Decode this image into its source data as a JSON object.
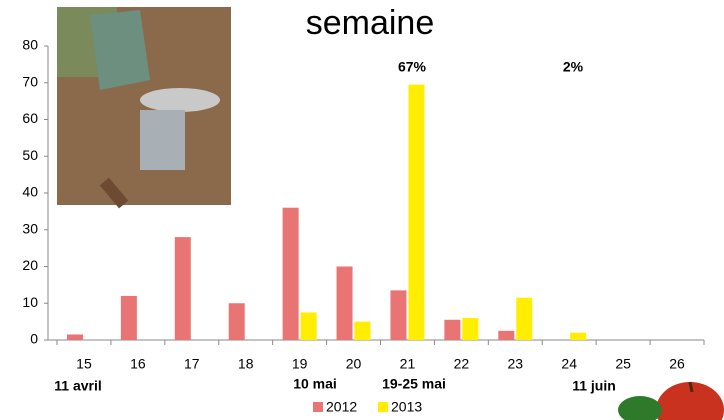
{
  "chart_data": {
    "type": "bar",
    "title": "semaine",
    "categories": [
      "15",
      "16",
      "17",
      "18",
      "19",
      "20",
      "21",
      "22",
      "23",
      "24",
      "25",
      "26"
    ],
    "series": [
      {
        "name": "2012",
        "color": "#e87474",
        "values": [
          1.5,
          12,
          28,
          10,
          36,
          20,
          13.5,
          5.5,
          2.5,
          0,
          0,
          0
        ]
      },
      {
        "name": "2013",
        "color": "#ffee00",
        "values": [
          0,
          0,
          0,
          0,
          7.5,
          5,
          69.5,
          6,
          11.5,
          2,
          0,
          0
        ]
      }
    ],
    "ylim": [
      0,
      80
    ],
    "yticks": [
      0,
      10,
      20,
      30,
      40,
      50,
      60,
      70,
      80
    ],
    "annotations": [
      "67%",
      "2%"
    ],
    "date_labels": [
      "11 avril",
      "10 mai",
      "19-25 mai",
      "11 juin"
    ]
  }
}
